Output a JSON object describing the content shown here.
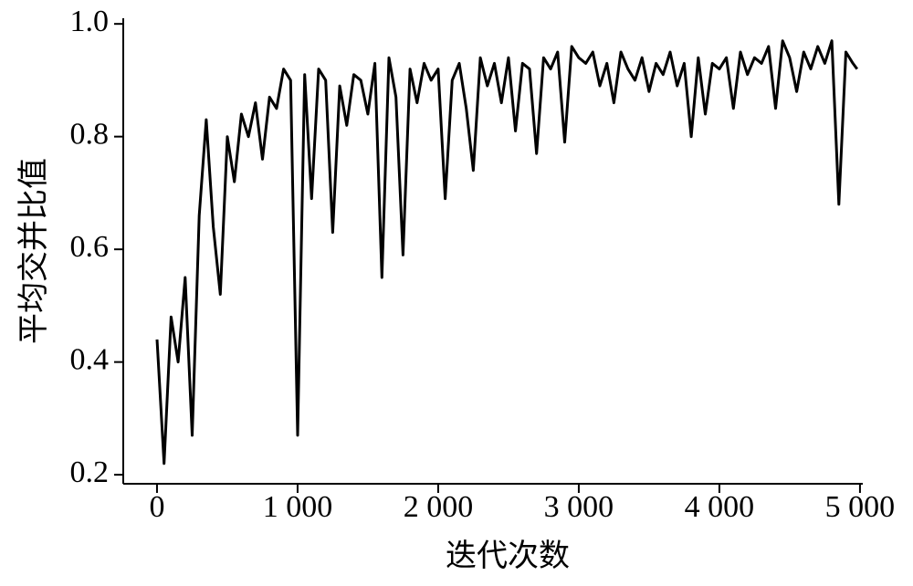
{
  "chart_data": {
    "type": "line",
    "xlabel": "迭代次数",
    "ylabel": "平均交并比值",
    "x": [
      0,
      50,
      100,
      150,
      200,
      250,
      300,
      350,
      400,
      450,
      500,
      550,
      600,
      650,
      700,
      750,
      800,
      850,
      900,
      950,
      1000,
      1050,
      1100,
      1150,
      1200,
      1250,
      1300,
      1350,
      1400,
      1450,
      1500,
      1550,
      1600,
      1650,
      1700,
      1750,
      1800,
      1850,
      1900,
      1950,
      2000,
      2050,
      2100,
      2150,
      2200,
      2250,
      2300,
      2350,
      2400,
      2450,
      2500,
      2550,
      2600,
      2650,
      2700,
      2750,
      2800,
      2850,
      2900,
      2950,
      3000,
      3050,
      3100,
      3150,
      3200,
      3250,
      3300,
      3350,
      3400,
      3450,
      3500,
      3550,
      3600,
      3650,
      3700,
      3750,
      3800,
      3850,
      3900,
      3950,
      4000,
      4050,
      4100,
      4150,
      4200,
      4250,
      4300,
      4350,
      4400,
      4450,
      4500,
      4550,
      4600,
      4650,
      4700,
      4750,
      4800,
      4850,
      4900,
      4950,
      4980
    ],
    "series": [
      {
        "color": "#000000",
        "values": [
          0.44,
          0.22,
          0.48,
          0.4,
          0.55,
          0.27,
          0.66,
          0.83,
          0.64,
          0.52,
          0.8,
          0.72,
          0.84,
          0.8,
          0.86,
          0.76,
          0.87,
          0.85,
          0.92,
          0.9,
          0.27,
          0.91,
          0.69,
          0.92,
          0.9,
          0.63,
          0.89,
          0.82,
          0.91,
          0.9,
          0.84,
          0.93,
          0.55,
          0.94,
          0.87,
          0.59,
          0.92,
          0.86,
          0.93,
          0.9,
          0.92,
          0.69,
          0.9,
          0.93,
          0.85,
          0.74,
          0.94,
          0.89,
          0.93,
          0.86,
          0.94,
          0.81,
          0.93,
          0.92,
          0.77,
          0.94,
          0.92,
          0.95,
          0.79,
          0.96,
          0.94,
          0.93,
          0.95,
          0.89,
          0.93,
          0.86,
          0.95,
          0.92,
          0.9,
          0.94,
          0.88,
          0.93,
          0.91,
          0.95,
          0.89,
          0.93,
          0.8,
          0.94,
          0.84,
          0.93,
          0.92,
          0.94,
          0.85,
          0.95,
          0.91,
          0.94,
          0.93,
          0.96,
          0.85,
          0.97,
          0.94,
          0.88,
          0.95,
          0.92,
          0.96,
          0.93,
          0.97,
          0.68,
          0.95,
          0.93,
          0.92
        ]
      }
    ],
    "xlim": [
      -240,
      5020
    ],
    "xticks": [
      0,
      {
        "value": 1000,
        "label": "1 000"
      },
      {
        "value": 2000,
        "label": "2 000"
      },
      {
        "value": 3000,
        "label": "3 000"
      },
      {
        "value": 4000,
        "label": "4 000"
      },
      {
        "value": 5000,
        "label": "5 000"
      }
    ],
    "ylim": [
      0.184,
      1.01
    ],
    "yticks": [
      0.2,
      0.4,
      0.6,
      0.8,
      {
        "value": 1,
        "label": "1.0"
      }
    ]
  }
}
